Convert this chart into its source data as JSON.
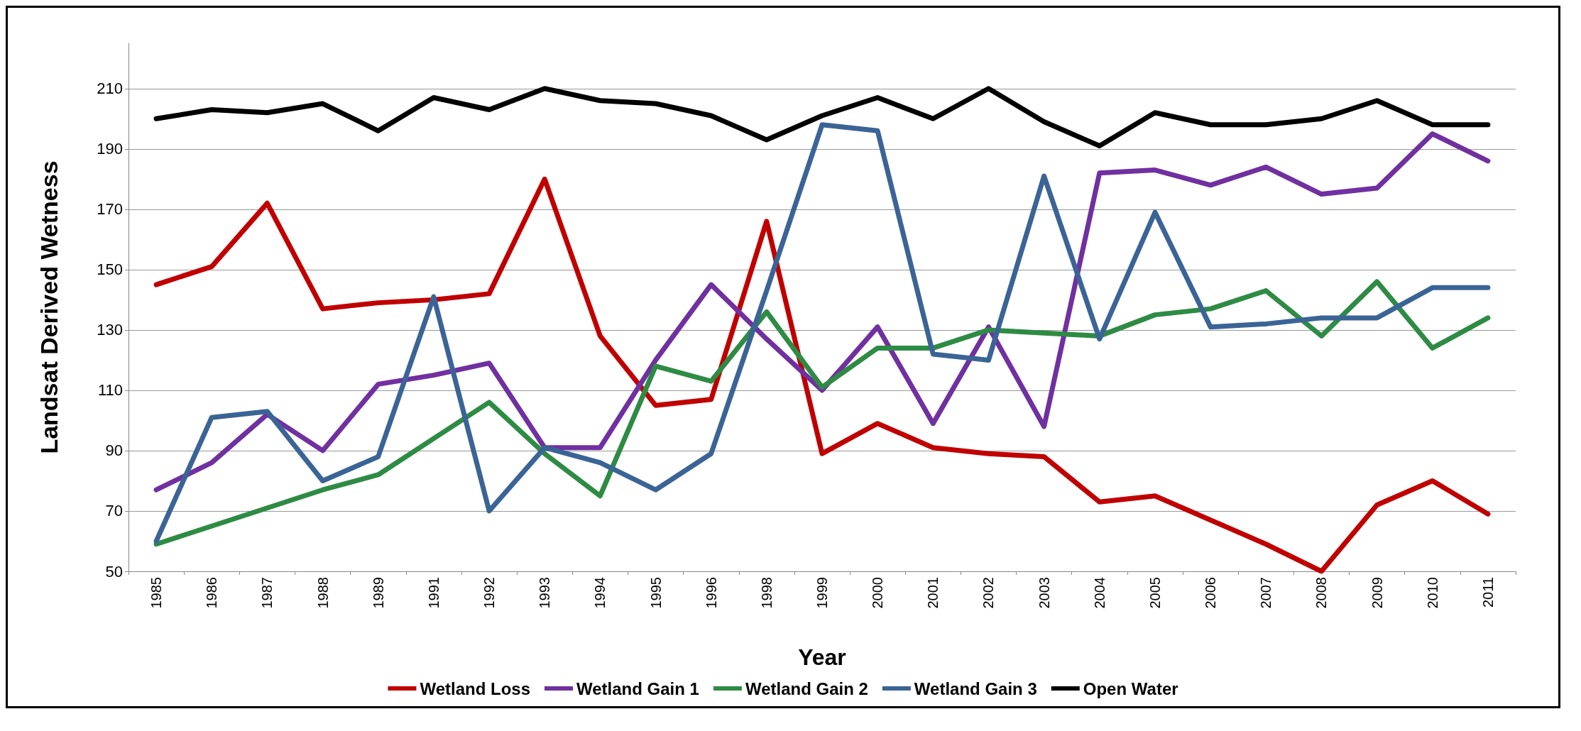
{
  "chart_data": {
    "type": "line",
    "xlabel": "Year",
    "ylabel": "Landsat Derived Wetness",
    "categories": [
      "1985",
      "1986",
      "1987",
      "1988",
      "1989",
      "1991",
      "1992",
      "1993",
      "1994",
      "1995",
      "1996",
      "1998",
      "1999",
      "2000",
      "2001",
      "2002",
      "2003",
      "2004",
      "2005",
      "2006",
      "2007",
      "2008",
      "2009",
      "2010",
      "2011"
    ],
    "series": [
      {
        "name": "Wetland Loss",
        "color": "#c00000",
        "values": [
          145,
          151,
          172,
          137,
          139,
          140,
          142,
          180,
          128,
          105,
          107,
          166,
          89,
          99,
          91,
          89,
          88,
          73,
          75,
          67,
          59,
          50,
          72,
          80,
          69
        ]
      },
      {
        "name": "Wetland Gain 1",
        "color": "#7030a0",
        "values": [
          77,
          86,
          102,
          90,
          112,
          115,
          119,
          91,
          91,
          120,
          145,
          127,
          110,
          131,
          99,
          131,
          98,
          182,
          183,
          178,
          184,
          175,
          177,
          195,
          186
        ]
      },
      {
        "name": "Wetland Gain 2",
        "color": "#2e8b44",
        "values": [
          59,
          65,
          71,
          77,
          82,
          94,
          106,
          89,
          75,
          118,
          113,
          136,
          111,
          124,
          124,
          130,
          129,
          128,
          135,
          137,
          143,
          128,
          146,
          124,
          134
        ]
      },
      {
        "name": "Wetland Gain 3",
        "color": "#3b6496",
        "values": [
          60,
          101,
          103,
          80,
          88,
          141,
          70,
          91,
          86,
          77,
          89,
          143,
          198,
          196,
          122,
          120,
          181,
          127,
          169,
          131,
          132,
          134,
          134,
          144,
          144
        ]
      },
      {
        "name": "Open Water",
        "color": "#000000",
        "values": [
          200,
          203,
          202,
          205,
          196,
          207,
          203,
          210,
          206,
          205,
          201,
          193,
          201,
          207,
          200,
          210,
          199,
          191,
          202,
          198,
          198,
          200,
          206,
          198,
          198
        ]
      }
    ],
    "ylim": [
      50,
      225
    ],
    "yticks": [
      50,
      70,
      90,
      110,
      130,
      150,
      170,
      190,
      210
    ],
    "grid": "y",
    "legend": "bottom",
    "marker": "none",
    "line_style": "solid"
  }
}
